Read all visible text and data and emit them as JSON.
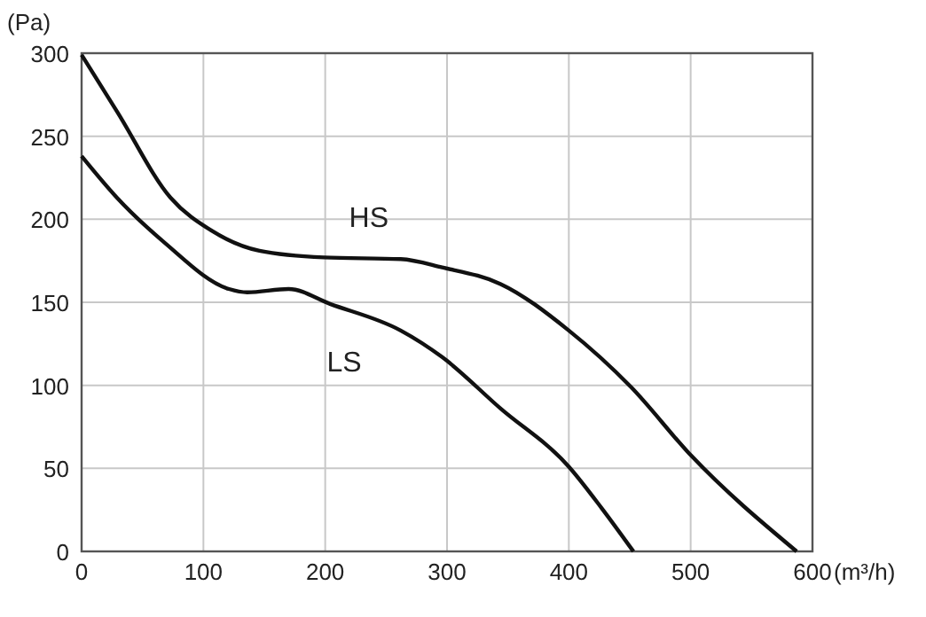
{
  "chart_data": {
    "type": "line",
    "ylabel": "(Pa)",
    "xlabel": "(m³/h)",
    "xlim": [
      0,
      600
    ],
    "ylim": [
      0,
      300
    ],
    "xticks": [
      0,
      100,
      200,
      300,
      400,
      500,
      600
    ],
    "yticks": [
      0,
      50,
      100,
      150,
      200,
      250,
      300
    ],
    "grid": true,
    "marker": "none",
    "line_style": "solid",
    "series": [
      {
        "name": "HS",
        "color": "#111111",
        "x": [
          0,
          29,
          73,
          107,
          146,
          199,
          262,
          296,
          344,
          400,
          451,
          500,
          587
        ],
        "values": [
          299,
          265,
          213,
          193,
          181,
          177,
          176,
          171,
          161,
          133,
          99,
          58,
          0
        ]
      },
      {
        "name": "LS",
        "color": "#111111",
        "x": [
          0,
          29,
          68,
          121,
          136,
          170,
          204,
          262,
          296,
          344,
          400,
          427,
          453
        ],
        "values": [
          238,
          213,
          186,
          158,
          156,
          158,
          149,
          133,
          117,
          86,
          51,
          26,
          0
        ]
      }
    ]
  }
}
